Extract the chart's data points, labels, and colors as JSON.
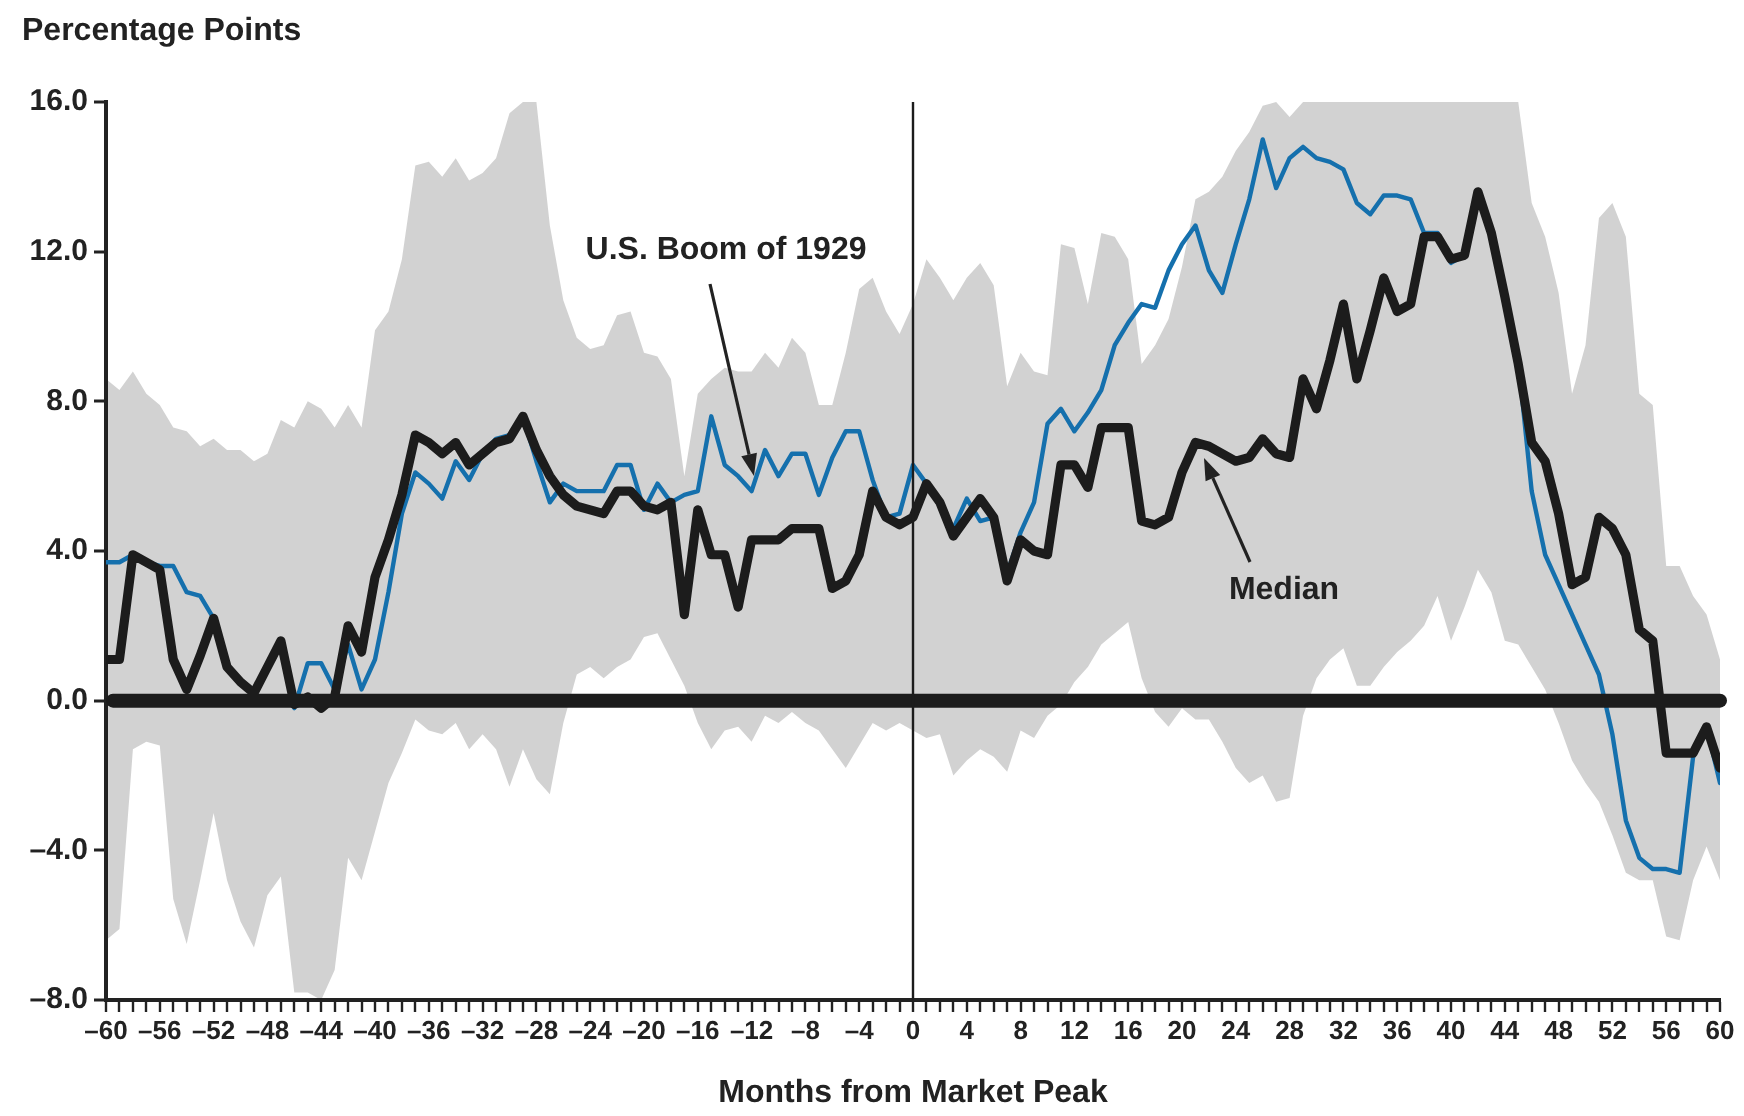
{
  "chart_data": {
    "type": "line",
    "xlabel": "Months from Market Peak",
    "ylabel": "Percentage Points",
    "x": [
      -60,
      -59,
      -58,
      -57,
      -56,
      -55,
      -54,
      -53,
      -52,
      -51,
      -50,
      -49,
      -48,
      -47,
      -46,
      -45,
      -44,
      -43,
      -42,
      -41,
      -40,
      -39,
      -38,
      -37,
      -36,
      -35,
      -34,
      -33,
      -32,
      -31,
      -30,
      -29,
      -28,
      -27,
      -26,
      -25,
      -24,
      -23,
      -22,
      -21,
      -20,
      -19,
      -18,
      -17,
      -16,
      -15,
      -14,
      -13,
      -12,
      -11,
      -10,
      -9,
      -8,
      -7,
      -6,
      -5,
      -4,
      -3,
      -2,
      -1,
      0,
      1,
      2,
      3,
      4,
      5,
      6,
      7,
      8,
      9,
      10,
      11,
      12,
      13,
      14,
      15,
      16,
      17,
      18,
      19,
      20,
      21,
      22,
      23,
      24,
      25,
      26,
      27,
      28,
      29,
      30,
      31,
      32,
      33,
      34,
      35,
      36,
      37,
      38,
      39,
      40,
      41,
      42,
      43,
      44,
      45,
      46,
      47,
      48,
      49,
      50,
      51,
      52,
      53,
      54,
      55,
      56,
      57,
      58,
      59,
      60
    ],
    "series": [
      {
        "color": "#1570ad",
        "values": [
          3.7,
          3.7,
          3.9,
          3.7,
          3.6,
          3.6,
          2.9,
          2.8,
          2.2,
          0.9,
          0.5,
          0.2,
          0.9,
          1.5,
          -0.2,
          1.0,
          1.0,
          0.3,
          1.5,
          0.3,
          1.1,
          2.9,
          5.0,
          6.1,
          5.8,
          5.4,
          6.4,
          5.9,
          6.6,
          7.0,
          7.1,
          7.6,
          6.4,
          5.3,
          5.8,
          5.6,
          5.6,
          5.6,
          6.3,
          6.3,
          5.1,
          5.8,
          5.3,
          5.5,
          5.6,
          7.6,
          6.3,
          6.0,
          5.6,
          6.7,
          6.0,
          6.6,
          6.6,
          5.5,
          6.5,
          7.2,
          7.2,
          5.9,
          4.9,
          5.0,
          6.3,
          5.8,
          5.2,
          4.6,
          5.4,
          4.8,
          4.9,
          3.4,
          4.5,
          5.3,
          7.4,
          7.8,
          7.2,
          7.7,
          8.3,
          9.5,
          10.1,
          10.6,
          10.5,
          11.5,
          12.2,
          12.7,
          11.5,
          10.9,
          12.2,
          13.4,
          15.0,
          13.7,
          14.5,
          14.8,
          14.5,
          14.4,
          14.2,
          13.3,
          13.0,
          13.5,
          13.5,
          13.4,
          12.5,
          12.5,
          11.7,
          11.9,
          13.6,
          12.5,
          10.9,
          9.1,
          5.6,
          3.9,
          3.1,
          2.3,
          1.5,
          0.7,
          -0.9,
          -3.2,
          -4.2,
          -4.5,
          -4.5,
          -4.6,
          -1.5,
          -0.7,
          -2.2
        ]
      },
      {
        "color": "#1c1c1c",
        "values": [
          1.1,
          1.1,
          3.9,
          3.7,
          3.5,
          1.1,
          0.3,
          1.2,
          2.2,
          0.9,
          0.5,
          0.2,
          0.9,
          1.6,
          -0.1,
          0.1,
          -0.2,
          0.1,
          2.0,
          1.3,
          3.3,
          4.3,
          5.5,
          7.1,
          6.9,
          6.6,
          6.9,
          6.3,
          6.6,
          6.9,
          7.0,
          7.6,
          6.7,
          6.0,
          5.5,
          5.2,
          5.1,
          5.0,
          5.6,
          5.6,
          5.2,
          5.1,
          5.3,
          2.3,
          5.1,
          3.9,
          3.9,
          2.5,
          4.3,
          4.3,
          4.3,
          4.6,
          4.6,
          4.6,
          3.0,
          3.2,
          3.9,
          5.6,
          4.9,
          4.7,
          4.9,
          5.8,
          5.3,
          4.4,
          4.9,
          5.4,
          4.9,
          3.2,
          4.3,
          4.0,
          3.9,
          6.3,
          6.3,
          5.7,
          7.3,
          7.3,
          7.3,
          4.8,
          4.7,
          4.9,
          6.1,
          6.9,
          6.8,
          6.6,
          6.4,
          6.5,
          7.0,
          6.6,
          6.5,
          8.6,
          7.8,
          9.1,
          10.6,
          8.6,
          9.9,
          11.3,
          10.4,
          10.6,
          12.4,
          12.4,
          11.8,
          11.9,
          13.6,
          12.5,
          10.8,
          9.0,
          6.9,
          6.4,
          5.0,
          3.1,
          3.3,
          4.9,
          4.6,
          3.9,
          1.9,
          1.6,
          -1.4,
          -1.4,
          -1.4,
          -0.7,
          -1.8
        ],
        "upper": [
          8.6,
          8.3,
          8.8,
          8.2,
          7.9,
          7.3,
          7.2,
          6.8,
          7.0,
          6.7,
          6.7,
          6.4,
          6.6,
          7.5,
          7.3,
          8.0,
          7.8,
          7.3,
          7.9,
          7.3,
          9.9,
          10.4,
          11.8,
          14.3,
          14.4,
          14.0,
          14.5,
          13.9,
          14.1,
          14.5,
          15.7,
          16,
          16,
          12.7,
          10.7,
          9.7,
          9.4,
          9.5,
          10.3,
          10.4,
          9.3,
          9.2,
          8.6,
          6.0,
          8.2,
          8.6,
          8.9,
          8.8,
          8.8,
          9.3,
          8.9,
          9.7,
          9.3,
          7.9,
          7.9,
          9.3,
          11.0,
          11.3,
          10.4,
          9.8,
          10.6,
          11.8,
          11.3,
          10.7,
          11.3,
          11.7,
          11.1,
          8.4,
          9.3,
          8.8,
          8.7,
          12.2,
          12.1,
          10.6,
          12.5,
          12.4,
          11.8,
          9.0,
          9.5,
          10.2,
          11.6,
          13.4,
          13.6,
          14.0,
          14.7,
          15.2,
          15.9,
          16,
          15.6,
          16,
          16,
          16,
          16,
          16,
          16,
          16,
          16,
          16,
          16,
          16,
          16,
          16,
          16,
          16,
          16,
          16,
          13.3,
          12.4,
          10.9,
          8.2,
          9.5,
          12.9,
          13.3,
          12.4,
          8.2,
          7.9,
          3.6,
          3.6,
          2.8,
          2.3,
          1.1
        ],
        "lower": [
          -6.4,
          -6.1,
          -1.3,
          -1.1,
          -1.2,
          -5.3,
          -6.5,
          -4.8,
          -3.0,
          -4.8,
          -5.9,
          -6.6,
          -5.2,
          -4.7,
          -7.8,
          -7.8,
          -8.0,
          -7.2,
          -4.2,
          -4.8,
          -3.5,
          -2.2,
          -1.4,
          -0.5,
          -0.8,
          -0.9,
          -0.6,
          -1.3,
          -0.9,
          -1.3,
          -2.3,
          -1.3,
          -2.1,
          -2.5,
          -0.6,
          0.7,
          0.9,
          0.6,
          0.9,
          1.1,
          1.7,
          1.8,
          1.1,
          0.4,
          -0.6,
          -1.3,
          -0.8,
          -0.7,
          -1.1,
          -0.4,
          -0.6,
          -0.3,
          -0.6,
          -0.8,
          -1.3,
          -1.8,
          -1.2,
          -0.6,
          -0.8,
          -0.6,
          -0.8,
          -1.0,
          -0.9,
          -2.0,
          -1.6,
          -1.3,
          -1.5,
          -1.9,
          -0.8,
          -1.0,
          -0.4,
          -0.1,
          0.5,
          0.9,
          1.5,
          1.8,
          2.1,
          0.6,
          -0.3,
          -0.7,
          -0.2,
          -0.5,
          -0.5,
          -1.1,
          -1.8,
          -2.2,
          -2.0,
          -2.7,
          -2.6,
          -0.4,
          0.6,
          1.1,
          1.4,
          0.4,
          0.4,
          0.9,
          1.3,
          1.6,
          2.0,
          2.8,
          1.6,
          2.5,
          3.5,
          2.9,
          1.6,
          1.5,
          0.9,
          0.3,
          -0.6,
          -1.6,
          -2.2,
          -2.7,
          -3.6,
          -4.6,
          -4.8,
          -4.8,
          -6.3,
          -6.4,
          -4.8,
          -3.9,
          -4.8
        ]
      }
    ],
    "xlim": [
      -60,
      60
    ],
    "ylim": [
      -8,
      16
    ],
    "xticks": [
      {
        "value": -60,
        "label": "–60"
      },
      {
        "value": -59,
        "label": null
      },
      {
        "value": -58,
        "label": null
      },
      {
        "value": -57,
        "label": null
      },
      {
        "value": -56,
        "label": "–56"
      },
      {
        "value": -55,
        "label": null
      },
      {
        "value": -54,
        "label": null
      },
      {
        "value": -53,
        "label": null
      },
      {
        "value": -52,
        "label": "–52"
      },
      {
        "value": -51,
        "label": null
      },
      {
        "value": -50,
        "label": null
      },
      {
        "value": -49,
        "label": null
      },
      {
        "value": -48,
        "label": "–48"
      },
      {
        "value": -47,
        "label": null
      },
      {
        "value": -46,
        "label": null
      },
      {
        "value": -45,
        "label": null
      },
      {
        "value": -44,
        "label": "–44"
      },
      {
        "value": -43,
        "label": null
      },
      {
        "value": -42,
        "label": null
      },
      {
        "value": -41,
        "label": null
      },
      {
        "value": -40,
        "label": "–40"
      },
      {
        "value": -39,
        "label": null
      },
      {
        "value": -38,
        "label": null
      },
      {
        "value": -37,
        "label": null
      },
      {
        "value": -36,
        "label": "–36"
      },
      {
        "value": -35,
        "label": null
      },
      {
        "value": -34,
        "label": null
      },
      {
        "value": -33,
        "label": null
      },
      {
        "value": -32,
        "label": "–32"
      },
      {
        "value": -31,
        "label": null
      },
      {
        "value": -30,
        "label": null
      },
      {
        "value": -29,
        "label": null
      },
      {
        "value": -28,
        "label": "–28"
      },
      {
        "value": -27,
        "label": null
      },
      {
        "value": -26,
        "label": null
      },
      {
        "value": -25,
        "label": null
      },
      {
        "value": -24,
        "label": "–24"
      },
      {
        "value": -23,
        "label": null
      },
      {
        "value": -22,
        "label": null
      },
      {
        "value": -21,
        "label": null
      },
      {
        "value": -20,
        "label": "–20"
      },
      {
        "value": -19,
        "label": null
      },
      {
        "value": -18,
        "label": null
      },
      {
        "value": -17,
        "label": null
      },
      {
        "value": -16,
        "label": "–16"
      },
      {
        "value": -15,
        "label": null
      },
      {
        "value": -14,
        "label": null
      },
      {
        "value": -13,
        "label": null
      },
      {
        "value": -12,
        "label": "–12"
      },
      {
        "value": -11,
        "label": null
      },
      {
        "value": -10,
        "label": null
      },
      {
        "value": -9,
        "label": null
      },
      {
        "value": -8,
        "label": "–8"
      },
      {
        "value": -7,
        "label": null
      },
      {
        "value": -6,
        "label": null
      },
      {
        "value": -5,
        "label": null
      },
      {
        "value": -4,
        "label": "–4"
      },
      {
        "value": -3,
        "label": null
      },
      {
        "value": -2,
        "label": null
      },
      {
        "value": -1,
        "label": null
      },
      0,
      {
        "value": 1,
        "label": null
      },
      {
        "value": 2,
        "label": null
      },
      {
        "value": 3,
        "label": null
      },
      4,
      {
        "value": 5,
        "label": null
      },
      {
        "value": 6,
        "label": null
      },
      {
        "value": 7,
        "label": null
      },
      8,
      {
        "value": 9,
        "label": null
      },
      {
        "value": 10,
        "label": null
      },
      {
        "value": 11,
        "label": null
      },
      12,
      {
        "value": 13,
        "label": null
      },
      {
        "value": 14,
        "label": null
      },
      {
        "value": 15,
        "label": null
      },
      16,
      {
        "value": 17,
        "label": null
      },
      {
        "value": 18,
        "label": null
      },
      {
        "value": 19,
        "label": null
      },
      20,
      {
        "value": 21,
        "label": null
      },
      {
        "value": 22,
        "label": null
      },
      {
        "value": 23,
        "label": null
      },
      24,
      {
        "value": 25,
        "label": null
      },
      {
        "value": 26,
        "label": null
      },
      {
        "value": 27,
        "label": null
      },
      28,
      {
        "value": 29,
        "label": null
      },
      {
        "value": 30,
        "label": null
      },
      {
        "value": 31,
        "label": null
      },
      32,
      {
        "value": 33,
        "label": null
      },
      {
        "value": 34,
        "label": null
      },
      {
        "value": 35,
        "label": null
      },
      36,
      {
        "value": 37,
        "label": null
      },
      {
        "value": 38,
        "label": null
      },
      {
        "value": 39,
        "label": null
      },
      40,
      {
        "value": 41,
        "label": null
      },
      {
        "value": 42,
        "label": null
      },
      {
        "value": 43,
        "label": null
      },
      44,
      {
        "value": 45,
        "label": null
      },
      {
        "value": 46,
        "label": null
      },
      {
        "value": 47,
        "label": null
      },
      48,
      {
        "value": 49,
        "label": null
      },
      {
        "value": 50,
        "label": null
      },
      {
        "value": 51,
        "label": null
      },
      52,
      {
        "value": 53,
        "label": null
      },
      {
        "value": 54,
        "label": null
      },
      {
        "value": 55,
        "label": null
      },
      56,
      {
        "value": 57,
        "label": null
      },
      {
        "value": 58,
        "label": null
      },
      {
        "value": 59,
        "label": null
      },
      60
    ],
    "yticks": [
      {
        "value": -8,
        "label": "–8.0"
      },
      {
        "value": -4,
        "label": "–4.0"
      },
      {
        "value": 0,
        "label": "0.0"
      },
      {
        "value": 4,
        "label": "4.0"
      },
      {
        "value": 8,
        "label": "8.0"
      },
      {
        "value": 12,
        "label": "12.0"
      },
      {
        "value": 16,
        "label": "16.0"
      }
    ],
    "ref_lines": [
      {
        "axis": "y",
        "value": 0,
        "color": "#1c1c1c"
      },
      {
        "axis": "x",
        "value": 0,
        "color": "#1c1c1c"
      }
    ],
    "annotations": [
      "U.S. Boom of 1929",
      "Median"
    ]
  }
}
